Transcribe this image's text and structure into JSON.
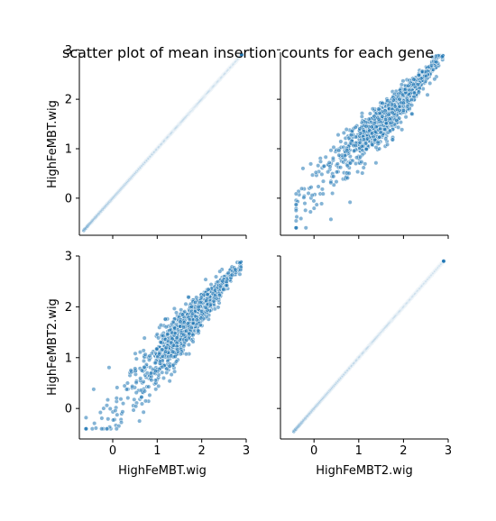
{
  "chart_data": {
    "type": "scatter",
    "title": "scatter plot of mean insertion counts for each gene",
    "variables": [
      "HighFeMBT.wig",
      "HighFeMBT2.wig"
    ],
    "x_ticks": [
      "0",
      "1",
      "2",
      "3"
    ],
    "y_ticks": [
      "0",
      "1",
      "2",
      "3"
    ],
    "axis_range": [
      -0.75,
      3.0
    ],
    "y_range_top_row": [
      -0.75,
      2.95
    ],
    "y_range_bottom_row": [
      -0.6,
      3.0
    ],
    "series_color": "#1f77b4",
    "grid": false,
    "panels": [
      {
        "row": "HighFeMBT.wig",
        "col": "HighFeMBT.wig",
        "relation": "identity",
        "x_min": -0.65,
        "x_max": 2.9
      },
      {
        "row": "HighFeMBT.wig",
        "col": "HighFeMBT2.wig",
        "relation": "scatter"
      },
      {
        "row": "HighFeMBT2.wig",
        "col": "HighFeMBT.wig",
        "relation": "scatter"
      },
      {
        "row": "HighFeMBT2.wig",
        "col": "HighFeMBT2.wig",
        "relation": "identity",
        "x_min": -0.45,
        "x_max": 2.9
      }
    ]
  }
}
